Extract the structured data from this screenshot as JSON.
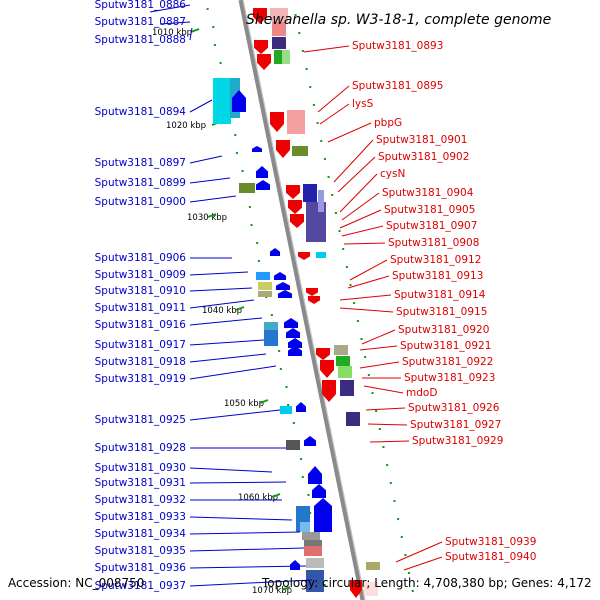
{
  "title": "Shewanella sp. W3-18-1, complete genome",
  "footer": {
    "accession": "Accession: NC_008750",
    "summary": "Topology: circular; Length: 4,708,380 bp; Genes: 4,172"
  },
  "colors": {
    "forward_label": "#0000cc",
    "reverse_label": "#dd0000",
    "forward_gene": "#0000ee",
    "reverse_gene": "#ee0000",
    "axis": "#888888",
    "tick": "#119911"
  },
  "scale": {
    "unit": "kbp",
    "ticks": [
      "1010 kbp",
      "1020 kbp",
      "1030 kbp",
      "1040 kbp",
      "1050 kbp",
      "1060 kbp",
      "1070 kbp"
    ]
  },
  "left_labels": [
    "Sputw3181_0886",
    "Sputw3181_0887",
    "Sputw3181_0888",
    "Sputw3181_0894",
    "Sputw3181_0897",
    "Sputw3181_0899",
    "Sputw3181_0900",
    "Sputw3181_0906",
    "Sputw3181_0909",
    "Sputw3181_0910",
    "Sputw3181_0911",
    "Sputw3181_0916",
    "Sputw3181_0917",
    "Sputw3181_0918",
    "Sputw3181_0919",
    "Sputw3181_0925",
    "Sputw3181_0928",
    "Sputw3181_0930",
    "Sputw3181_0931",
    "Sputw3181_0932",
    "Sputw3181_0933",
    "Sputw3181_0934",
    "Sputw3181_0935",
    "Sputw3181_0936",
    "Sputw3181_0937"
  ],
  "right_labels": [
    "Sputw3181_0893",
    "Sputw3181_0895",
    "lysS",
    "pbpG",
    "Sputw3181_0901",
    "Sputw3181_0902",
    "cysN",
    "Sputw3181_0904",
    "Sputw3181_0905",
    "Sputw3181_0907",
    "Sputw3181_0908",
    "Sputw3181_0912",
    "Sputw3181_0913",
    "Sputw3181_0914",
    "Sputw3181_0915",
    "Sputw3181_0920",
    "Sputw3181_0921",
    "Sputw3181_0922",
    "Sputw3181_0923",
    "mdoD",
    "Sputw3181_0926",
    "Sputw3181_0927",
    "Sputw3181_0929",
    "Sputw3181_0939",
    "Sputw3181_0940"
  ]
}
